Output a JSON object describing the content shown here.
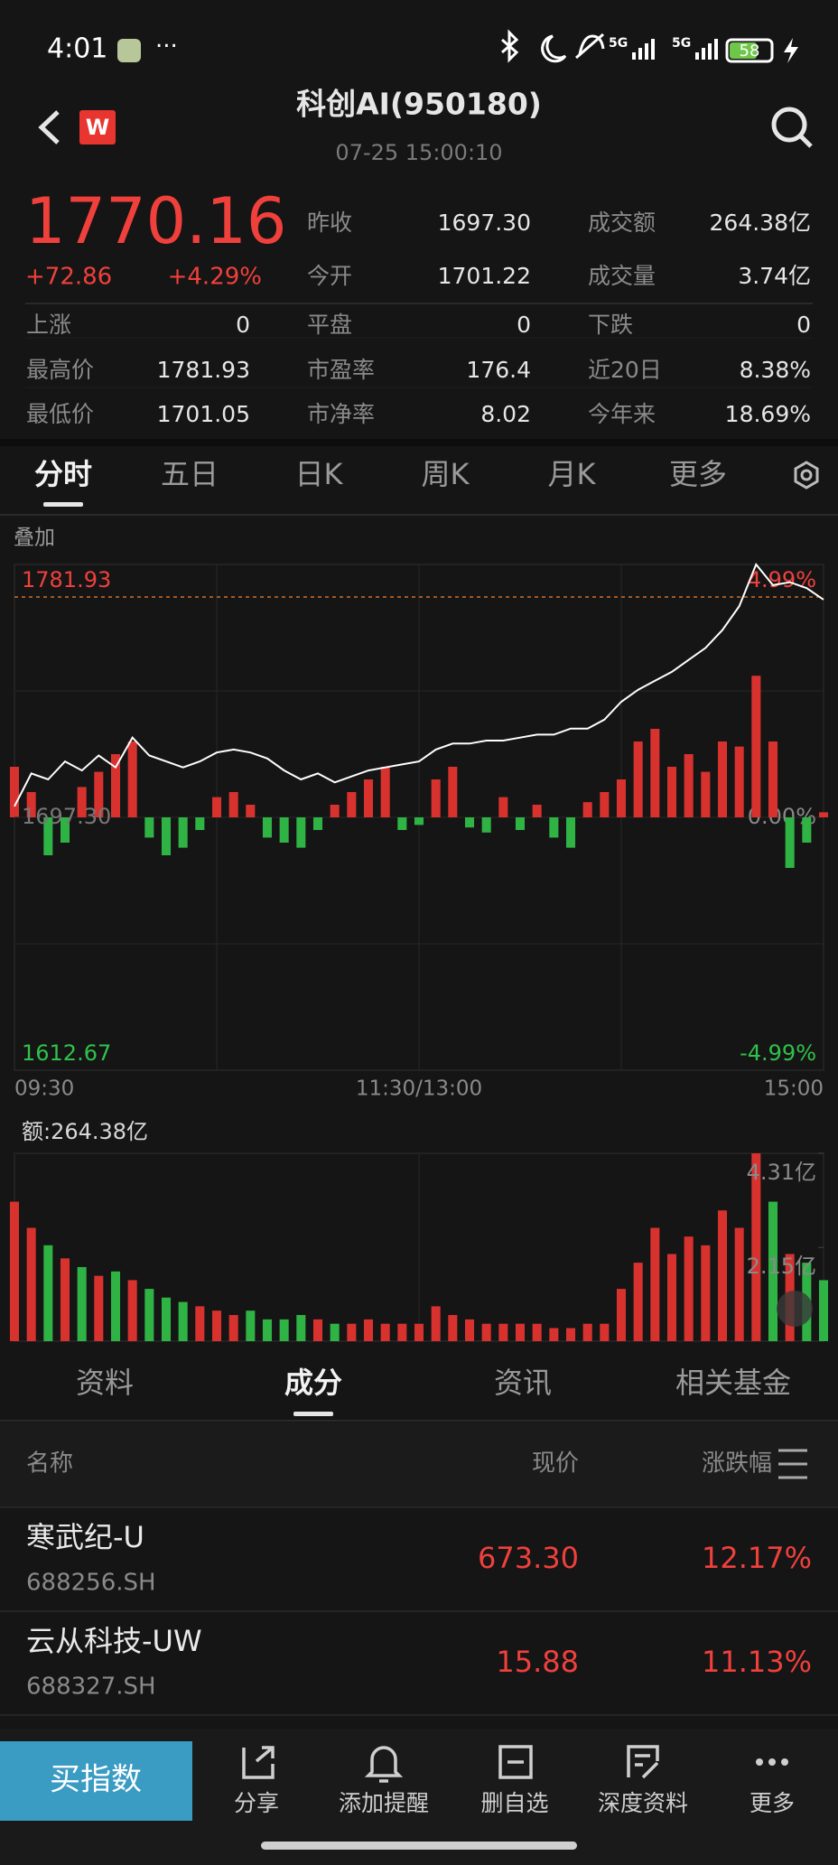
{
  "status": {
    "time": "4:01",
    "battery": "58"
  },
  "header": {
    "title": "科创AI(950180)",
    "subtitle": "07-25 15:00:10"
  },
  "quote": {
    "price": "1770.16",
    "change": "+72.86",
    "change_pct": "+4.29%"
  },
  "stats": [
    {
      "label": "昨收",
      "value": "1697.30"
    },
    {
      "label": "成交额",
      "value": "264.38亿"
    },
    {
      "label": "今开",
      "value": "1701.22"
    },
    {
      "label": "成交量",
      "value": "3.74亿"
    },
    {
      "label": "上涨",
      "value": "0"
    },
    {
      "label": "平盘",
      "value": "0"
    },
    {
      "label": "下跌",
      "value": "0"
    },
    {
      "label": "最高价",
      "value": "1781.93"
    },
    {
      "label": "市盈率",
      "value": "176.4"
    },
    {
      "label": "近20日",
      "value": "8.38%"
    },
    {
      "label": "最低价",
      "value": "1701.05"
    },
    {
      "label": "市净率",
      "value": "8.02"
    },
    {
      "label": "今年来",
      "value": "18.69%"
    }
  ],
  "period_tabs": [
    "分时",
    "五日",
    "日K",
    "周K",
    "月K",
    "更多"
  ],
  "overlay_label": "叠加",
  "chart_data": [
    {
      "type": "line",
      "x": [
        0,
        5,
        10,
        15,
        20,
        25,
        30,
        35,
        40,
        45,
        50,
        55,
        60,
        65,
        70,
        75,
        80,
        85,
        90,
        95,
        100,
        105,
        110,
        115,
        120,
        125,
        130,
        135,
        140,
        145,
        150,
        155,
        160,
        165,
        170,
        175,
        180,
        185,
        190,
        195,
        200,
        205,
        210,
        215,
        220,
        225,
        230,
        235,
        240
      ],
      "series": [
        {
          "color": "#ffffff",
          "values": [
            1701,
            1712,
            1710,
            1716,
            1713,
            1718,
            1714,
            1724,
            1718,
            1716,
            1714,
            1716,
            1719,
            1720,
            1719,
            1717,
            1713,
            1710,
            1712,
            1709,
            1711,
            1713,
            1714,
            1715,
            1716,
            1720,
            1722,
            1722,
            1723,
            1723,
            1724,
            1725,
            1725,
            1727,
            1727,
            1730,
            1736,
            1740,
            1743,
            1746,
            1750,
            1754,
            1760,
            1768,
            1781.93,
            1775,
            1776,
            1774,
            1770.16
          ]
        }
      ],
      "xlim": [
        0,
        240
      ],
      "xticks": [
        {
          "value": 0,
          "label": "09:30"
        },
        {
          "value": 120,
          "label": "11:30/13:00"
        },
        {
          "value": 240,
          "label": "15:00"
        }
      ],
      "ylim": [
        1612.67,
        1781.93
      ],
      "yticks": [
        1781.93,
        {
          "value": 1697.3,
          "label": "1697.30"
        },
        1612.67
      ],
      "y2lim": [
        -4.99,
        4.99
      ],
      "y2ticks": [
        {
          "value": 4.99,
          "label": "4.99%"
        },
        {
          "value": 0,
          "label": "0.00%"
        },
        {
          "value": -4.99,
          "label": "-4.99%"
        }
      ]
    },
    {
      "type": "bar",
      "values": [
        20,
        10,
        -15,
        -10,
        12,
        18,
        25,
        30,
        -8,
        -15,
        -12,
        -5,
        8,
        10,
        5,
        -8,
        -10,
        -12,
        -5,
        5,
        10,
        15,
        20,
        -5,
        -3,
        15,
        20,
        -4,
        -6,
        8,
        -5,
        5,
        -8,
        -12,
        6,
        10,
        15,
        30,
        35,
        20,
        25,
        18,
        30,
        28,
        56,
        30,
        -20,
        -10,
        2
      ],
      "ylim": [
        -100,
        100
      ],
      "color_up": "#d8322f",
      "color_down": "#2fb345"
    },
    {
      "type": "bar",
      "title": "额:264.38亿",
      "values": [
        3.2,
        2.6,
        2.2,
        1.9,
        1.7,
        1.5,
        1.6,
        1.4,
        1.2,
        1.0,
        0.9,
        0.8,
        0.7,
        0.6,
        0.7,
        0.5,
        0.5,
        0.6,
        0.5,
        0.4,
        0.4,
        0.5,
        0.4,
        0.4,
        0.4,
        0.8,
        0.6,
        0.5,
        0.4,
        0.4,
        0.4,
        0.4,
        0.3,
        0.3,
        0.4,
        0.4,
        1.2,
        1.8,
        2.6,
        2.0,
        2.4,
        2.2,
        3.0,
        2.6,
        4.31,
        3.2,
        2.0,
        1.8,
        1.4
      ],
      "ylim": [
        0,
        4.31
      ],
      "yticks": [
        {
          "value": 4.31,
          "label": "4.31亿"
        },
        {
          "value": 2.15,
          "label": "2.15亿"
        }
      ],
      "color_up": "#d8322f",
      "color_down": "#2fb345"
    }
  ],
  "info_tabs": [
    "资料",
    "成分",
    "资讯",
    "相关基金"
  ],
  "list_header": {
    "name": "名称",
    "price": "现价",
    "change": "涨跌幅"
  },
  "constituents": [
    {
      "name": "寒武纪-U",
      "code": "688256.SH",
      "price": "673.30",
      "change_pct": "12.17%"
    },
    {
      "name": "云从科技-UW",
      "code": "688327.SH",
      "price": "15.88",
      "change_pct": "11.13%"
    }
  ],
  "buy_button": "买指数",
  "toolbar": [
    "分享",
    "添加提醒",
    "删自选",
    "深度资料",
    "更多"
  ]
}
